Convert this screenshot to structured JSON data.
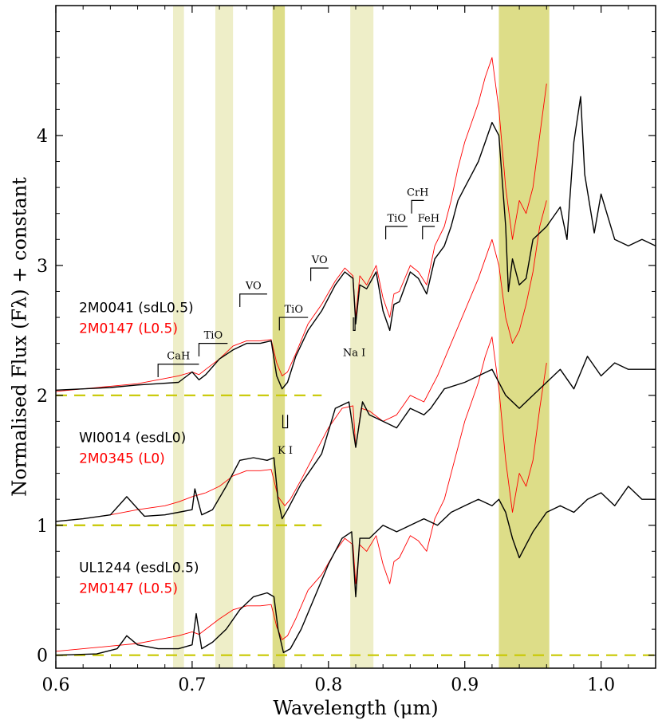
{
  "chart_data": {
    "type": "line",
    "title": "",
    "xlabel": "Wavelength (μm)",
    "ylabel": "Normalised Flux (Fλ) + constant",
    "xlim": [
      0.6,
      1.04
    ],
    "ylim": [
      -0.1,
      5.0
    ],
    "xticks": [
      0.6,
      0.7,
      0.8,
      0.9,
      1.0
    ],
    "xtick_labels": [
      "0.6",
      "0.7",
      "0.8",
      "0.9",
      "1.0"
    ],
    "yticks": [
      0,
      1,
      2,
      3,
      4
    ],
    "ytick_labels": [
      "0",
      "1",
      "2",
      "3",
      "4"
    ],
    "colors": {
      "black_spectrum": "#000000",
      "red_spectrum": "#ff0000",
      "dashed_baseline": "#c8c800",
      "band_light": "#eeeec8",
      "band_dark": "#dddd88"
    },
    "bands": [
      {
        "from": 0.686,
        "to": 0.694,
        "shade": "light"
      },
      {
        "from": 0.717,
        "to": 0.73,
        "shade": "light"
      },
      {
        "from": 0.759,
        "to": 0.768,
        "shade": "dark"
      },
      {
        "from": 0.816,
        "to": 0.833,
        "shade": "light"
      },
      {
        "from": 0.925,
        "to": 0.962,
        "shade": "dark"
      }
    ],
    "baselines": [
      {
        "y": 0,
        "xmin": 0.6,
        "xmax": 1.04
      },
      {
        "y": 1,
        "xmin": 0.6,
        "xmax": 0.795
      },
      {
        "y": 2,
        "xmin": 0.6,
        "xmax": 0.795
      }
    ],
    "series": [
      {
        "name": "2M0041 (sdL0.5)",
        "color": "#000000",
        "offset": 2,
        "x": [
          0.6,
          0.62,
          0.64,
          0.66,
          0.675,
          0.69,
          0.7,
          0.705,
          0.71,
          0.72,
          0.73,
          0.74,
          0.75,
          0.758,
          0.762,
          0.766,
          0.77,
          0.776,
          0.785,
          0.795,
          0.805,
          0.812,
          0.818,
          0.82,
          0.823,
          0.828,
          0.835,
          0.84,
          0.845,
          0.848,
          0.852,
          0.86,
          0.866,
          0.872,
          0.878,
          0.885,
          0.89,
          0.895,
          0.9,
          0.905,
          0.91,
          0.915,
          0.92,
          0.925,
          0.93,
          0.932,
          0.935,
          0.94,
          0.945,
          0.95,
          0.96,
          0.97,
          0.975,
          0.98,
          0.985,
          0.988,
          0.995,
          1.0,
          1.01,
          1.02,
          1.03,
          1.04
        ],
        "y": [
          0.04,
          0.05,
          0.06,
          0.08,
          0.09,
          0.1,
          0.18,
          0.12,
          0.16,
          0.28,
          0.35,
          0.4,
          0.4,
          0.42,
          0.15,
          0.05,
          0.1,
          0.3,
          0.5,
          0.65,
          0.85,
          0.95,
          0.9,
          0.55,
          0.85,
          0.82,
          0.95,
          0.65,
          0.5,
          0.7,
          0.72,
          0.95,
          0.9,
          0.78,
          1.05,
          1.15,
          1.3,
          1.5,
          1.6,
          1.7,
          1.8,
          1.95,
          2.1,
          2.0,
          1.3,
          0.8,
          1.05,
          0.85,
          0.9,
          1.2,
          1.3,
          1.45,
          1.2,
          1.95,
          2.3,
          1.7,
          1.25,
          1.55,
          1.2,
          1.15,
          1.2,
          1.15
        ]
      },
      {
        "name": "2M0147 (L0.5)",
        "color": "#ff0000",
        "offset": 2,
        "x": [
          0.6,
          0.62,
          0.64,
          0.66,
          0.675,
          0.69,
          0.7,
          0.705,
          0.71,
          0.72,
          0.73,
          0.74,
          0.75,
          0.758,
          0.762,
          0.766,
          0.77,
          0.776,
          0.785,
          0.795,
          0.805,
          0.812,
          0.818,
          0.82,
          0.823,
          0.828,
          0.835,
          0.84,
          0.845,
          0.848,
          0.852,
          0.86,
          0.866,
          0.872,
          0.878,
          0.885,
          0.89,
          0.895,
          0.9,
          0.905,
          0.91,
          0.915,
          0.92,
          0.925,
          0.93,
          0.935,
          0.94,
          0.945,
          0.95,
          0.955,
          0.96
        ],
        "y": [
          0.03,
          0.05,
          0.07,
          0.09,
          0.12,
          0.15,
          0.18,
          0.16,
          0.2,
          0.28,
          0.38,
          0.42,
          0.42,
          0.43,
          0.25,
          0.15,
          0.18,
          0.32,
          0.55,
          0.7,
          0.88,
          0.98,
          0.92,
          0.6,
          0.92,
          0.85,
          1.0,
          0.75,
          0.6,
          0.78,
          0.8,
          1.0,
          0.95,
          0.85,
          1.15,
          1.3,
          1.5,
          1.75,
          1.95,
          2.1,
          2.25,
          2.45,
          2.6,
          2.2,
          1.6,
          1.2,
          1.5,
          1.4,
          1.6,
          2.0,
          2.4
        ]
      },
      {
        "name": "WI0014 (esdL0)",
        "color": "#000000",
        "offset": 1,
        "x": [
          0.6,
          0.62,
          0.64,
          0.652,
          0.665,
          0.68,
          0.69,
          0.7,
          0.702,
          0.707,
          0.715,
          0.725,
          0.735,
          0.745,
          0.755,
          0.76,
          0.763,
          0.766,
          0.77,
          0.78,
          0.795,
          0.805,
          0.815,
          0.82,
          0.825,
          0.83,
          0.84,
          0.85,
          0.86,
          0.87,
          0.875,
          0.885,
          0.9,
          0.91,
          0.92,
          0.93,
          0.94,
          0.95,
          0.96,
          0.97,
          0.98,
          0.99,
          1.0,
          1.01,
          1.02,
          1.03,
          1.04
        ],
        "y": [
          0.03,
          0.05,
          0.08,
          0.22,
          0.07,
          0.08,
          0.1,
          0.12,
          0.28,
          0.08,
          0.12,
          0.3,
          0.5,
          0.52,
          0.5,
          0.52,
          0.2,
          0.05,
          0.12,
          0.32,
          0.55,
          0.9,
          0.95,
          0.6,
          0.95,
          0.85,
          0.8,
          0.75,
          0.9,
          0.85,
          0.9,
          1.05,
          1.1,
          1.15,
          1.2,
          1.0,
          0.9,
          1.0,
          1.1,
          1.2,
          1.05,
          1.3,
          1.15,
          1.25,
          1.2,
          1.2,
          1.2
        ]
      },
      {
        "name": "2M0345 (L0)",
        "color": "#ff0000",
        "offset": 1,
        "x": [
          0.6,
          0.62,
          0.64,
          0.66,
          0.68,
          0.69,
          0.7,
          0.71,
          0.72,
          0.73,
          0.74,
          0.75,
          0.758,
          0.763,
          0.768,
          0.772,
          0.78,
          0.79,
          0.8,
          0.81,
          0.818,
          0.82,
          0.824,
          0.83,
          0.84,
          0.85,
          0.86,
          0.87,
          0.88,
          0.89,
          0.9,
          0.91,
          0.92,
          0.925,
          0.93,
          0.935,
          0.94,
          0.945,
          0.95,
          0.955,
          0.96
        ],
        "y": [
          0.03,
          0.05,
          0.08,
          0.12,
          0.15,
          0.18,
          0.22,
          0.25,
          0.3,
          0.38,
          0.42,
          0.42,
          0.43,
          0.22,
          0.15,
          0.2,
          0.35,
          0.55,
          0.75,
          0.9,
          0.92,
          0.6,
          0.9,
          0.88,
          0.8,
          0.85,
          1.0,
          0.95,
          1.15,
          1.4,
          1.65,
          1.9,
          2.2,
          2.0,
          1.6,
          1.4,
          1.5,
          1.7,
          1.95,
          2.3,
          2.5
        ]
      },
      {
        "name": "UL1244 (esdL0.5)",
        "color": "#000000",
        "offset": 0,
        "x": [
          0.6,
          0.63,
          0.645,
          0.652,
          0.66,
          0.675,
          0.69,
          0.7,
          0.703,
          0.707,
          0.715,
          0.725,
          0.735,
          0.745,
          0.755,
          0.76,
          0.763,
          0.767,
          0.772,
          0.78,
          0.79,
          0.8,
          0.81,
          0.817,
          0.82,
          0.823,
          0.83,
          0.84,
          0.85,
          0.86,
          0.87,
          0.88,
          0.89,
          0.9,
          0.91,
          0.92,
          0.925,
          0.93,
          0.935,
          0.94,
          0.945,
          0.95,
          0.96,
          0.97,
          0.98,
          0.99,
          1.0,
          1.01,
          1.02,
          1.03,
          1.04
        ],
        "y": [
          0.0,
          0.01,
          0.05,
          0.15,
          0.08,
          0.05,
          0.05,
          0.08,
          0.32,
          0.05,
          0.1,
          0.2,
          0.35,
          0.45,
          0.48,
          0.45,
          0.2,
          0.02,
          0.05,
          0.2,
          0.45,
          0.7,
          0.9,
          0.95,
          0.45,
          0.9,
          0.9,
          1.0,
          0.95,
          1.0,
          1.05,
          1.0,
          1.1,
          1.15,
          1.2,
          1.15,
          1.2,
          1.1,
          0.9,
          0.75,
          0.85,
          0.95,
          1.1,
          1.15,
          1.1,
          1.2,
          1.25,
          1.15,
          1.3,
          1.2,
          1.2
        ]
      },
      {
        "name": "2M0147 (L0.5)",
        "color": "#ff0000",
        "offset": 0,
        "x": [
          0.6,
          0.62,
          0.64,
          0.66,
          0.675,
          0.69,
          0.7,
          0.705,
          0.71,
          0.72,
          0.73,
          0.74,
          0.75,
          0.758,
          0.762,
          0.766,
          0.77,
          0.776,
          0.785,
          0.795,
          0.805,
          0.812,
          0.818,
          0.82,
          0.823,
          0.828,
          0.835,
          0.84,
          0.845,
          0.848,
          0.852,
          0.86,
          0.866,
          0.872,
          0.878,
          0.885,
          0.89,
          0.895,
          0.9,
          0.905,
          0.91,
          0.915,
          0.92,
          0.925,
          0.93,
          0.935,
          0.94,
          0.945,
          0.95,
          0.955,
          0.96
        ],
        "y": [
          0.03,
          0.05,
          0.07,
          0.09,
          0.12,
          0.15,
          0.18,
          0.16,
          0.2,
          0.28,
          0.35,
          0.38,
          0.38,
          0.39,
          0.22,
          0.12,
          0.15,
          0.28,
          0.5,
          0.62,
          0.8,
          0.9,
          0.85,
          0.55,
          0.85,
          0.8,
          0.92,
          0.7,
          0.55,
          0.72,
          0.75,
          0.92,
          0.88,
          0.8,
          1.05,
          1.2,
          1.4,
          1.6,
          1.8,
          1.95,
          2.1,
          2.3,
          2.45,
          2.05,
          1.5,
          1.1,
          1.4,
          1.3,
          1.5,
          1.9,
          2.25
        ]
      }
    ],
    "labels": [
      {
        "text": "2M0041 (sdL0.5)",
        "color": "#000000",
        "x": 0.61,
        "y": 2.64
      },
      {
        "text": "2M0147 (L0.5)",
        "color": "#ff0000",
        "x": 0.61,
        "y": 2.48
      },
      {
        "text": "WI0014 (esdL0)",
        "color": "#000000",
        "x": 0.61,
        "y": 1.64
      },
      {
        "text": "2M0345 (L0)",
        "color": "#ff0000",
        "x": 0.61,
        "y": 1.48
      },
      {
        "text": "UL1244 (esdL0.5)",
        "color": "#000000",
        "x": 0.61,
        "y": 0.64
      },
      {
        "text": "2M0147 (L0.5)",
        "color": "#ff0000",
        "x": 0.61,
        "y": 0.48
      }
    ],
    "features": [
      {
        "label": "CaH",
        "x1": 0.675,
        "x2": 0.705,
        "y": 2.24,
        "drop": 0.1,
        "left_tick": true,
        "right_tick": false
      },
      {
        "label": "TiO",
        "x1": 0.705,
        "x2": 0.726,
        "y": 2.4,
        "drop": 0.1,
        "left_tick": true,
        "right_tick": false
      },
      {
        "label": "VO",
        "x1": 0.735,
        "x2": 0.755,
        "y": 2.78,
        "drop": 0.1,
        "left_tick": true,
        "right_tick": false
      },
      {
        "label": "TiO",
        "x1": 0.764,
        "x2": 0.785,
        "y": 2.6,
        "drop": 0.1,
        "left_tick": true,
        "right_tick": false
      },
      {
        "label": "VO",
        "x1": 0.787,
        "x2": 0.8,
        "y": 2.98,
        "drop": 0.1,
        "left_tick": true,
        "right_tick": false
      },
      {
        "label": "TiO",
        "x1": 0.842,
        "x2": 0.858,
        "y": 3.3,
        "drop": 0.1,
        "left_tick": true,
        "right_tick": false
      },
      {
        "label": "CrH",
        "x1": 0.861,
        "x2": 0.87,
        "y": 3.5,
        "drop": 0.1,
        "left_tick": true,
        "right_tick": false
      },
      {
        "label": "FeH",
        "x1": 0.869,
        "x2": 0.878,
        "y": 3.3,
        "drop": 0.1,
        "left_tick": true,
        "right_tick": false
      },
      {
        "label": "Na I",
        "x1": 0.8183,
        "x2": 0.8195,
        "y": 2.5,
        "drop": -0.1,
        "left_tick": true,
        "right_tick": true
      },
      {
        "label": "K I",
        "x1": 0.7665,
        "x2": 0.77,
        "y": 1.75,
        "drop": -0.1,
        "left_tick": true,
        "right_tick": true
      }
    ]
  }
}
